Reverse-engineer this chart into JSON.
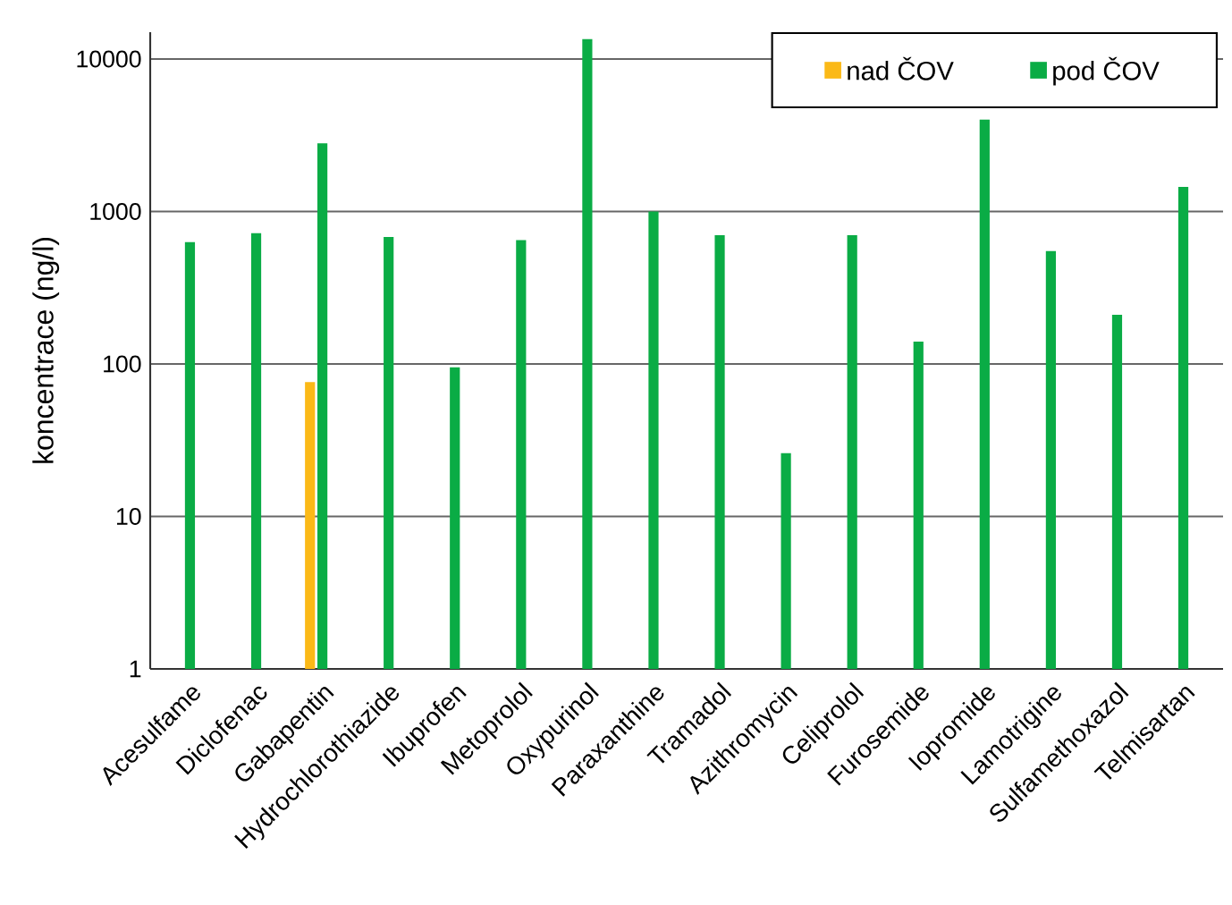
{
  "chart_data": {
    "type": "bar",
    "ylabel": "koncentrace (ng/l)",
    "categories": [
      "Acesulfame",
      "Diclofenac",
      "Gabapentin",
      "Hydrochlorothiazide",
      "Ibuprofen",
      "Metoprolol",
      "Oxypurinol",
      "Paraxanthine",
      "Tramadol",
      "Azithromycin",
      "Celiprolol",
      "Furosemide",
      "Iopromide",
      "Lamotrigine",
      "Sulfamethoxazol",
      "Telmisartan"
    ],
    "series": [
      {
        "name": "nad ČOV",
        "color": "#fbb917",
        "values": [
          null,
          null,
          76,
          null,
          null,
          null,
          null,
          null,
          null,
          null,
          null,
          null,
          null,
          null,
          null,
          null
        ]
      },
      {
        "name": "pod ČOV",
        "color": "#0aac45",
        "values": [
          630,
          720,
          2800,
          680,
          95,
          650,
          13500,
          1000,
          700,
          26,
          700,
          140,
          4000,
          550,
          210,
          1450
        ]
      }
    ],
    "log": true,
    "ylim": [
      1,
      15000
    ],
    "yticks": [
      1,
      10,
      100,
      1000,
      10000
    ],
    "grid": "y",
    "legend": "top right"
  }
}
